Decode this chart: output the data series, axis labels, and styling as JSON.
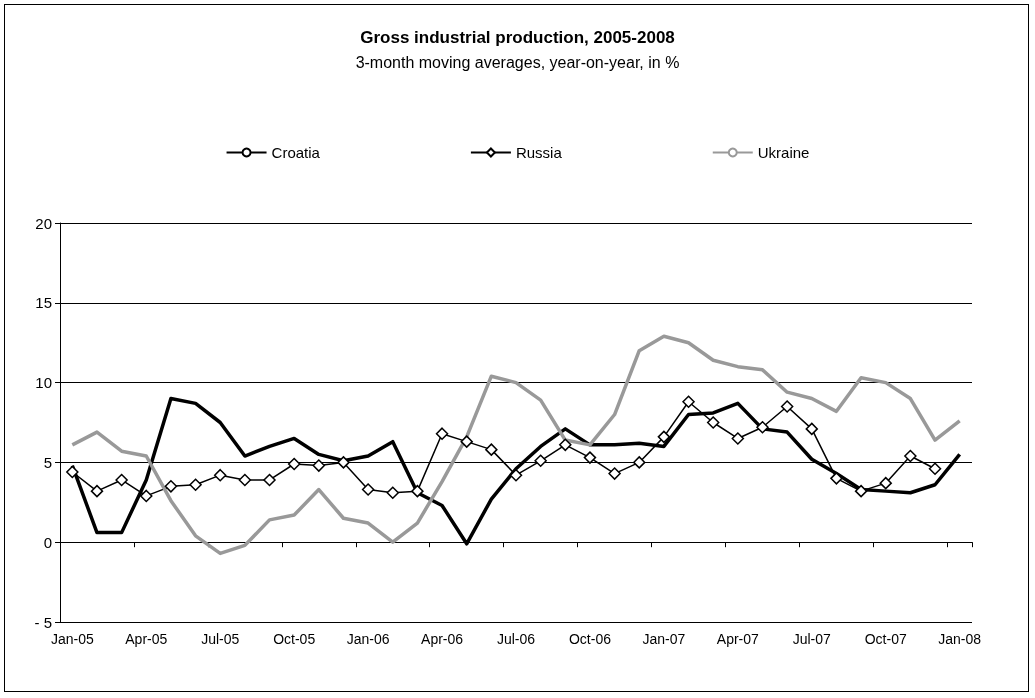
{
  "chart_data": {
    "type": "line",
    "title": "Gross industrial production, 2005-2008",
    "subtitle": "3-month moving averages, year-on-year, in %",
    "categories": [
      "Jan-05",
      null,
      null,
      "Apr-05",
      null,
      null,
      "Jul-05",
      null,
      null,
      "Oct-05",
      null,
      null,
      "Jan-06",
      null,
      null,
      "Apr-06",
      null,
      null,
      "Jul-06",
      null,
      null,
      "Oct-06",
      null,
      null,
      "Jan-07",
      null,
      null,
      "Apr-07",
      null,
      null,
      "Jul-07",
      null,
      null,
      "Oct-07",
      null,
      null,
      "Jan-08"
    ],
    "series": [
      {
        "name": "Croatia",
        "color": "#000000",
        "marker": "none",
        "values": [
          4.8,
          0.6,
          0.6,
          3.9,
          9.0,
          8.7,
          7.5,
          5.4,
          6.0,
          6.5,
          5.5,
          5.1,
          5.4,
          6.3,
          3.1,
          2.3,
          -0.1,
          2.7,
          4.6,
          6.0,
          7.1,
          6.1,
          6.1,
          6.2,
          6.0,
          8.0,
          8.1,
          8.7,
          7.1,
          6.9,
          5.2,
          4.3,
          3.3,
          3.2,
          3.1,
          3.6,
          5.5
        ]
      },
      {
        "name": "Russia",
        "color": "#000000",
        "marker": "diamond",
        "values": [
          4.4,
          3.2,
          3.9,
          2.9,
          3.5,
          3.6,
          4.2,
          3.9,
          3.9,
          4.9,
          4.8,
          5.0,
          3.3,
          3.1,
          3.2,
          6.8,
          6.3,
          5.8,
          4.2,
          5.1,
          6.1,
          5.3,
          4.3,
          5.0,
          6.6,
          8.8,
          7.5,
          6.5,
          7.2,
          8.5,
          7.1,
          4.0,
          3.2,
          3.7,
          5.4,
          4.6,
          null
        ]
      },
      {
        "name": "Ukraine",
        "color": "#999999",
        "marker": "none",
        "values": [
          6.1,
          6.9,
          5.7,
          5.4,
          2.6,
          0.4,
          -0.7,
          -0.2,
          1.4,
          1.7,
          3.3,
          1.5,
          1.2,
          0.0,
          1.2,
          3.8,
          6.6,
          10.4,
          10.0,
          8.9,
          6.4,
          6.1,
          8.0,
          12.0,
          12.9,
          12.5,
          11.4,
          11.0,
          10.8,
          9.4,
          9.0,
          8.2,
          10.3,
          10.0,
          9.0,
          6.4,
          7.6
        ]
      }
    ],
    "ylim": [
      -5,
      20
    ],
    "yticks": [
      {
        "value": -5,
        "label": "- 5"
      },
      0,
      5,
      10,
      15,
      20
    ],
    "grid": "y",
    "legend": "top"
  }
}
